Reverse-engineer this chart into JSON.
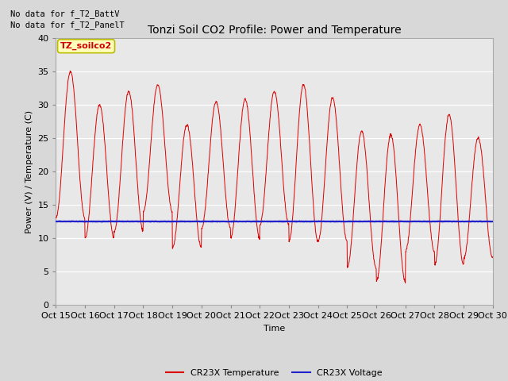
{
  "title": "Tonzi Soil CO2 Profile: Power and Temperature",
  "ylabel": "Power (V) / Temperature (C)",
  "xlabel": "Time",
  "no_data_text1": "No data for f_T2_BattV",
  "no_data_text2": "No data for f_T2_PanelT",
  "legend_label_text": "TZ_soilco2",
  "legend_cr23x_temp": "CR23X Temperature",
  "legend_cr23x_volt": "CR23X Voltage",
  "ylim": [
    0,
    40
  ],
  "yticks": [
    0,
    5,
    10,
    15,
    20,
    25,
    30,
    35,
    40
  ],
  "xtick_labels": [
    "Oct 15",
    "Oct 16",
    "Oct 17",
    "Oct 18",
    "Oct 19",
    "Oct 20",
    "Oct 21",
    "Oct 22",
    "Oct 23",
    "Oct 24",
    "Oct 25",
    "Oct 26",
    "Oct 27",
    "Oct 28",
    "Oct 29",
    "Oct 30"
  ],
  "bg_color": "#d8d8d8",
  "plot_bg_color": "#ffffff",
  "plot_inner_bg": "#e8e8e8",
  "red_color": "#dd0000",
  "blue_color": "#2222cc",
  "voltage_value": 12.5,
  "title_fontsize": 10,
  "label_fontsize": 8,
  "tick_fontsize": 8
}
